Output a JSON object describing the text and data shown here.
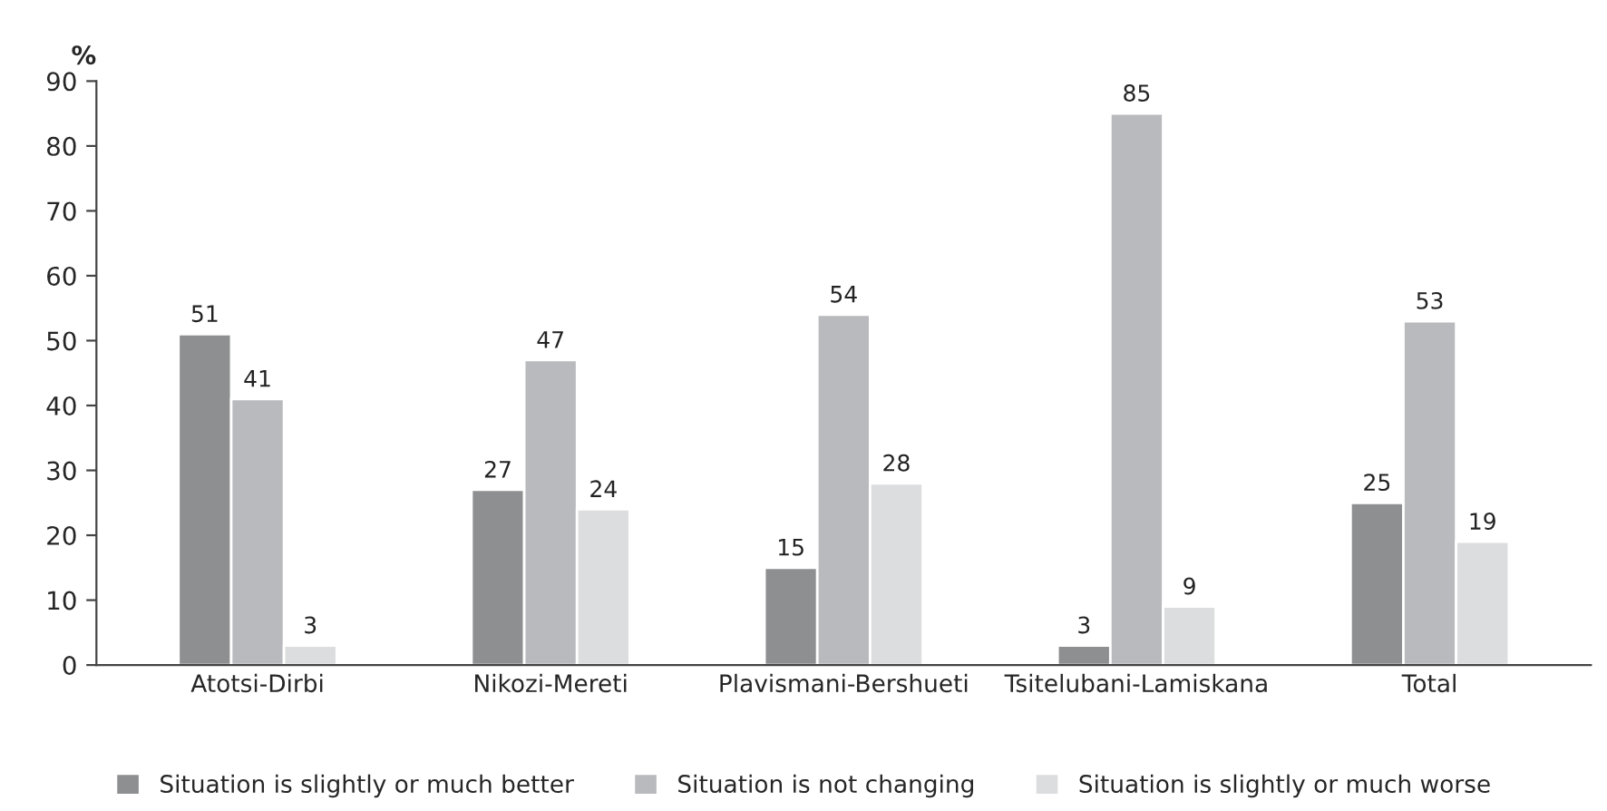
{
  "chart_data": {
    "type": "bar",
    "ylabel": "%",
    "categories": [
      "Atotsi-Dirbi",
      "Nikozi-Mereti",
      "Plavismani-Bershueti",
      "Tsitelubani-Lamiskana",
      "Total"
    ],
    "series": [
      {
        "name": "Situation is slightly or much better",
        "color": "#8e8f91",
        "values": [
          51,
          27,
          15,
          3,
          25
        ]
      },
      {
        "name": "Situation is not changing",
        "color": "#b9babd",
        "values": [
          41,
          47,
          54,
          85,
          53
        ]
      },
      {
        "name": "Situation is slightly or much worse",
        "color": "#dcdddf",
        "values": [
          3,
          24,
          28,
          9,
          19
        ]
      }
    ],
    "ylim": [
      0,
      90
    ],
    "yticks": [
      0,
      10,
      20,
      30,
      40,
      50,
      60,
      70,
      80,
      90
    ],
    "data_labels": true,
    "legend": "bottom",
    "grid": false
  }
}
